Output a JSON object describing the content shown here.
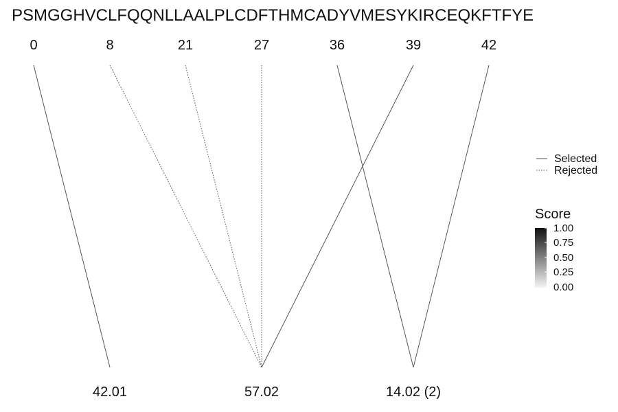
{
  "sequence": "PSMGGHVCLFQQNLLAALPLCDFTHMCADYVMESYKIRCEQKFTFYE",
  "chart_data": {
    "type": "diagram",
    "positions": [
      "0",
      "8",
      "21",
      "27",
      "36",
      "39",
      "42"
    ],
    "masses": [
      "42.01",
      "57.02",
      "14.02 (2)"
    ],
    "links": [
      {
        "from": "0",
        "to": "42.01",
        "status": "Selected"
      },
      {
        "from": "8",
        "to": "57.02",
        "status": "Rejected"
      },
      {
        "from": "21",
        "to": "57.02",
        "status": "Rejected"
      },
      {
        "from": "27",
        "to": "57.02",
        "status": "Rejected"
      },
      {
        "from": "39",
        "to": "57.02",
        "status": "Selected"
      },
      {
        "from": "36",
        "to": "14.02 (2)",
        "status": "Selected"
      },
      {
        "from": "42",
        "to": "14.02 (2)",
        "status": "Selected"
      }
    ],
    "legend": {
      "status": [
        "Selected",
        "Rejected"
      ],
      "score_title": "Score",
      "score_ticks": [
        "1.00",
        "0.75",
        "0.50",
        "0.25",
        "0.00"
      ]
    }
  },
  "colors": {
    "line": "#555555",
    "text": "#111111",
    "gradient_high": "#111111",
    "gradient_low": "#f4f4f4"
  }
}
